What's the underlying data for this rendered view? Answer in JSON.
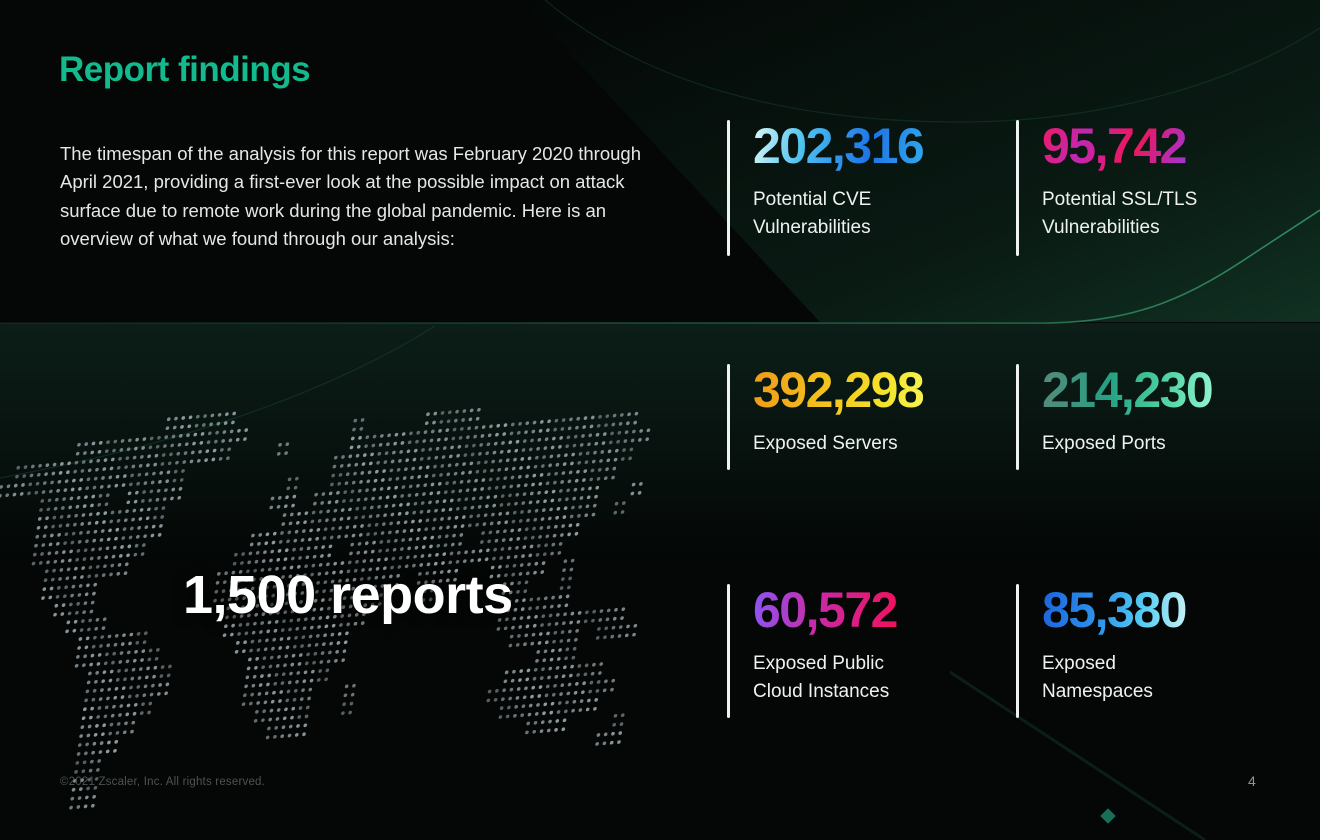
{
  "slide": {
    "title": "Report findings",
    "intro": "The timespan of the analysis for this report was February 2020 through April 2021, providing a first-ever look at the possible impact on attack surface due to remote work during the global pandemic. Here is an overview of what we found through our analysis:",
    "map_caption": "1,500 reports",
    "footer": {
      "copyright": "©2021 Zscaler, Inc. All rights reserved.",
      "page_number": "4"
    }
  },
  "stats": [
    {
      "value": "202,316",
      "label_lines": [
        "Potential CVE",
        "Vulnerabilities"
      ],
      "gradient": "linear-gradient(102deg, #dff8f6 0%, #4cc2f0 30%, #1e74e6 68%, #31a9ec 100%)"
    },
    {
      "value": "95,742",
      "label_lines": [
        "Potential SSL/TLS",
        "Vulnerabilities"
      ],
      "gradient": "linear-gradient(112deg, #ef1a63 0%, #c227b2 28%, #ee1658 58%, #8e3cf2 100%)"
    },
    {
      "value": "392,298",
      "label_lines": [
        "Exposed Servers"
      ],
      "gradient": "linear-gradient(95deg, #f0991a 0%, #f4c51d 45%, #f5e62c 80%, #f7f355 100%)"
    },
    {
      "value": "214,230",
      "label_lines": [
        "Exposed Ports"
      ],
      "gradient": "linear-gradient(95deg, #56897b 0%, #25a183 40%, #4ed3a2 72%, #93f4d2 100%)"
    },
    {
      "value": "60,572",
      "label_lines": [
        "Exposed Public",
        "Cloud Instances"
      ],
      "gradient": "linear-gradient(95deg, #8b55f4 0%, #c92aa6 45%, #f1115c 100%)"
    },
    {
      "value": "85,380",
      "label_lines": [
        "Exposed",
        "Namespaces"
      ],
      "gradient": "linear-gradient(95deg, #1c63dd 0%, #2f96ec 42%, #55cdf3 70%, #c9f2f4 100%)"
    }
  ],
  "colors": {
    "title": "#12ba8e",
    "body_text": "#e3e8e6",
    "map_dot": "#9aa9b1",
    "divider_bar": "#eef3f1",
    "accent_line": "#2e8a60",
    "diamond_accent": "#1d8066",
    "background": "#040706"
  }
}
